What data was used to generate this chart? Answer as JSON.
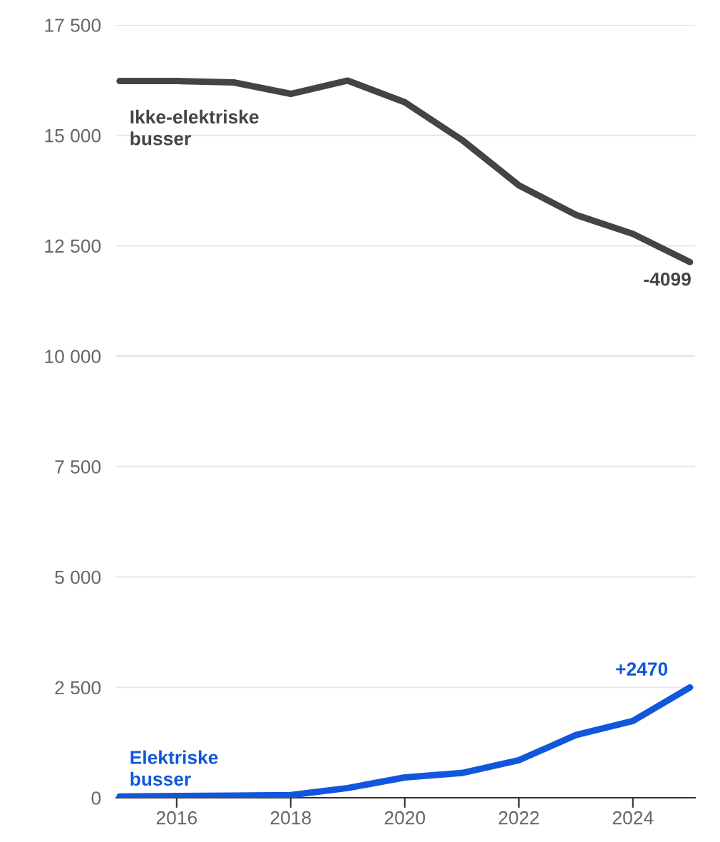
{
  "chart_data": {
    "type": "line",
    "x": [
      2015,
      2016,
      2017,
      2018,
      2019,
      2020,
      2021,
      2022,
      2023,
      2024,
      2025
    ],
    "series": [
      {
        "name": "Ikke-elektriske\nbusser",
        "color": "#444444",
        "values": [
          16230,
          16230,
          16200,
          15940,
          16240,
          15750,
          14900,
          13870,
          13200,
          12770,
          12130
        ]
      },
      {
        "name": "Elektriske\nbusser",
        "color": "#1157dc",
        "values": [
          30,
          40,
          50,
          60,
          220,
          460,
          560,
          850,
          1420,
          1740,
          2500
        ]
      }
    ],
    "xlim": [
      2014.94,
      2025.09
    ],
    "xticks": [
      2016,
      2018,
      2020,
      2022,
      2024
    ],
    "ylim": [
      0,
      17500
    ],
    "yticks": [
      0,
      {
        "value": 2500,
        "label": "2 500"
      },
      {
        "value": 5000,
        "label": "5 000"
      },
      {
        "value": 7500,
        "label": "7 500"
      },
      {
        "value": 10000,
        "label": "10 000"
      },
      {
        "value": 12500,
        "label": "12 500"
      },
      {
        "value": 15000,
        "label": "15 000"
      },
      {
        "value": 17500,
        "label": "17 500"
      }
    ],
    "grid": "y",
    "annotations": [
      {
        "text": "-4099",
        "x": 2025,
        "y": 12130
      },
      {
        "text": "+2470",
        "x": 2025,
        "y": 2500
      }
    ]
  }
}
